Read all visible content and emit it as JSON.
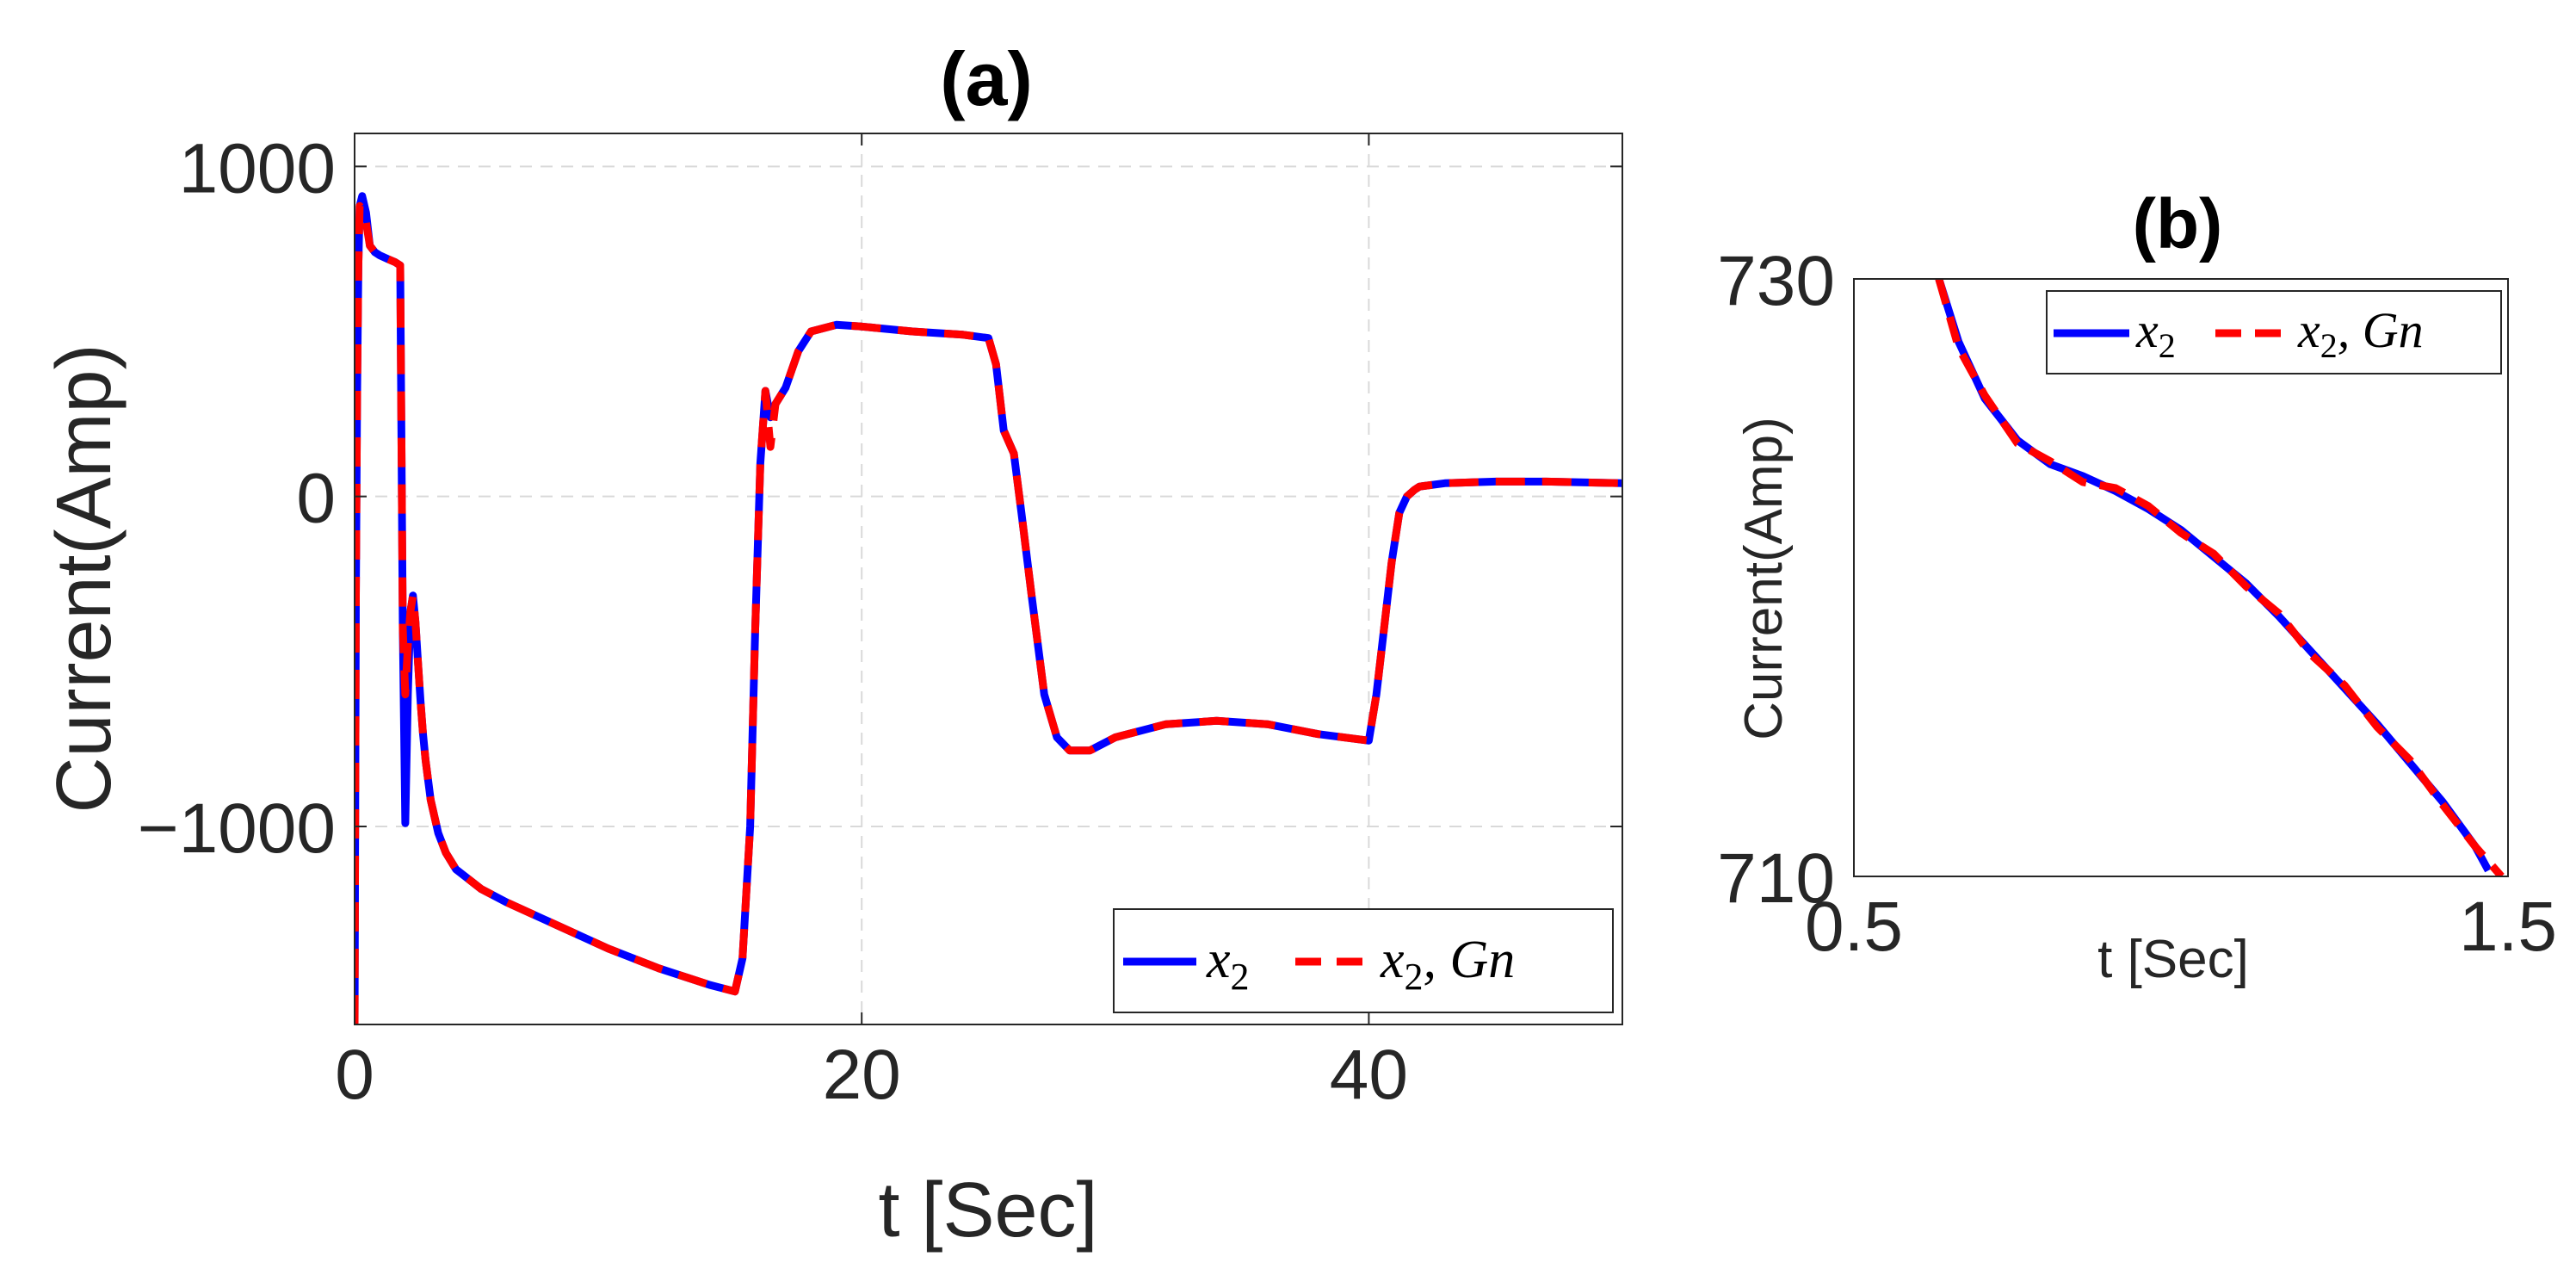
{
  "colors": {
    "series_x2": "#0000ff",
    "series_x2_gn": "#ff0000",
    "grid": "#d9d9d9",
    "axis": "#262626"
  },
  "chart_data": [
    {
      "type": "line",
      "title": "(a)",
      "xlabel": "t [Sec]",
      "ylabel": "Current(Amp)",
      "xlim": [
        0,
        50
      ],
      "ylim": [
        -1600,
        1100
      ],
      "xticks": [
        0,
        20,
        40
      ],
      "xtick_labels": [
        "0",
        "20",
        "40"
      ],
      "yticks": [
        1000,
        0,
        -1000
      ],
      "ytick_labels": [
        "1000",
        "0",
        "−1000"
      ],
      "grid": true,
      "legend_position": "bottom-right",
      "legend": [
        {
          "label": "x",
          "sub": "2",
          "suffix": ""
        },
        {
          "label": "x",
          "sub": "2",
          "suffix": ", Gn"
        }
      ],
      "series": [
        {
          "name": "x2",
          "style": "solid",
          "x": [
            0,
            0.05,
            0.1,
            0.15,
            0.2,
            0.3,
            0.45,
            0.6,
            0.8,
            1.0,
            1.3,
            1.6,
            1.8,
            1.9,
            2.0,
            2.1,
            2.2,
            2.3,
            2.4,
            2.5,
            2.6,
            2.7,
            2.8,
            3.0,
            3.3,
            3.6,
            4.0,
            4.5,
            5.0,
            6,
            8,
            10,
            12,
            14,
            15,
            15.3,
            15.6,
            15.8,
            16.0,
            16.2,
            16.4,
            16.6,
            17,
            17.5,
            18,
            19,
            20,
            22,
            24,
            25,
            25.3,
            25.6,
            26,
            26.3,
            26.7,
            27.2,
            27.7,
            28.2,
            29,
            30,
            32,
            34,
            36,
            38,
            40,
            40.3,
            40.6,
            40.9,
            41.2,
            41.5,
            41.8,
            42,
            43,
            45,
            47,
            50
          ],
          "y": [
            -1600,
            -300,
            300,
            700,
            880,
            910,
            860,
            760,
            740,
            730,
            720,
            710,
            700,
            -400,
            -990,
            -600,
            -350,
            -300,
            -380,
            -500,
            -620,
            -720,
            -800,
            -920,
            -1020,
            -1080,
            -1130,
            -1160,
            -1190,
            -1230,
            -1300,
            -1370,
            -1430,
            -1480,
            -1500,
            -1400,
            -1000,
            -400,
            100,
            320,
            240,
            280,
            330,
            440,
            500,
            520,
            515,
            500,
            490,
            480,
            400,
            200,
            130,
            -50,
            -300,
            -600,
            -730,
            -770,
            -770,
            -730,
            -690,
            -680,
            -690,
            -720,
            -740,
            -600,
            -400,
            -200,
            -50,
            0,
            20,
            30,
            40,
            45,
            45,
            40
          ]
        },
        {
          "name": "x2, Gn",
          "style": "dashed",
          "x": [
            0,
            0.05,
            0.1,
            0.15,
            0.2,
            0.3,
            0.45,
            0.6,
            0.8,
            1.0,
            1.3,
            1.6,
            1.8,
            1.9,
            2.0,
            2.1,
            2.2,
            2.3,
            2.4,
            2.5,
            2.6,
            2.7,
            2.8,
            3.0,
            3.3,
            3.6,
            4.0,
            4.5,
            5.0,
            6,
            8,
            10,
            12,
            14,
            15,
            15.3,
            15.6,
            15.8,
            16.0,
            16.2,
            16.4,
            16.6,
            17,
            17.5,
            18,
            19,
            20,
            22,
            24,
            25,
            25.3,
            25.6,
            26,
            26.3,
            26.7,
            27.2,
            27.7,
            28.2,
            29,
            30,
            32,
            34,
            36,
            38,
            40,
            40.3,
            40.6,
            40.9,
            41.2,
            41.5,
            41.8,
            42,
            43,
            45,
            47,
            50
          ],
          "y": [
            -1600,
            -300,
            300,
            700,
            880,
            870,
            830,
            760,
            740,
            730,
            720,
            710,
            700,
            -400,
            -600,
            -450,
            -350,
            -300,
            -380,
            -500,
            -620,
            -720,
            -800,
            -920,
            -1020,
            -1080,
            -1130,
            -1160,
            -1190,
            -1230,
            -1300,
            -1370,
            -1430,
            -1480,
            -1500,
            -1400,
            -1000,
            -400,
            100,
            320,
            150,
            280,
            330,
            440,
            500,
            520,
            515,
            500,
            490,
            480,
            400,
            200,
            130,
            -50,
            -300,
            -600,
            -730,
            -770,
            -770,
            -730,
            -690,
            -680,
            -690,
            -720,
            -740,
            -600,
            -400,
            -200,
            -50,
            0,
            20,
            30,
            40,
            45,
            45,
            40
          ]
        }
      ]
    },
    {
      "type": "line",
      "title": "(b)",
      "xlabel": "t [Sec]",
      "ylabel": "Current(Amp)",
      "xlim": [
        0.5,
        1.5
      ],
      "ylim": [
        710,
        730
      ],
      "xticks": [
        0.5,
        1.5
      ],
      "xtick_labels": [
        "0.5",
        "1.5"
      ],
      "yticks": [
        730,
        710
      ],
      "ytick_labels": [
        "730",
        "710"
      ],
      "grid": false,
      "legend_position": "top-right",
      "legend": [
        {
          "label": "x",
          "sub": "2",
          "suffix": ""
        },
        {
          "label": "x",
          "sub": "2",
          "suffix": ", Gn"
        }
      ],
      "series": [
        {
          "name": "x2",
          "style": "solid",
          "x": [
            0.63,
            0.66,
            0.7,
            0.75,
            0.8,
            0.85,
            0.9,
            0.95,
            1.0,
            1.05,
            1.1,
            1.15,
            1.2,
            1.25,
            1.3,
            1.35,
            1.4,
            1.45,
            1.47
          ],
          "y": [
            730,
            727.9,
            726,
            724.6,
            723.8,
            723.4,
            722.9,
            722.3,
            721.6,
            720.7,
            719.8,
            718.7,
            717.5,
            716.3,
            715.1,
            713.8,
            712.5,
            711.0,
            710.2
          ]
        },
        {
          "name": "x2, Gn",
          "style": "dashed",
          "x": [
            0.63,
            0.66,
            0.7,
            0.75,
            0.8,
            0.85,
            0.9,
            0.95,
            1.0,
            1.05,
            1.1,
            1.15,
            1.2,
            1.25,
            1.3,
            1.35,
            1.4,
            1.45,
            1.49
          ],
          "y": [
            730,
            727.7,
            726.1,
            724.5,
            723.9,
            723.2,
            723.0,
            722.4,
            721.5,
            720.8,
            719.7,
            718.8,
            717.4,
            716.4,
            715.0,
            713.9,
            712.4,
            711.0,
            710.0
          ]
        }
      ]
    }
  ]
}
